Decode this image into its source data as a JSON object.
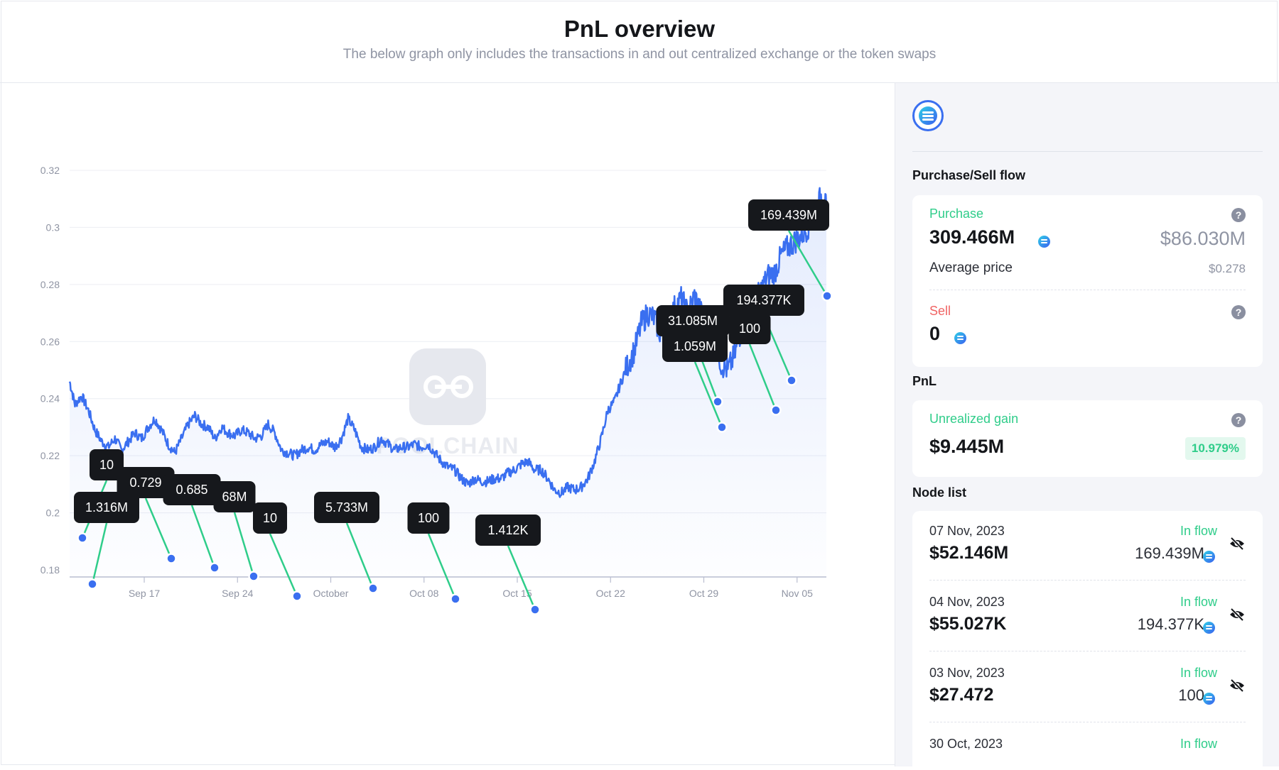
{
  "header": {
    "title": "PnL overview",
    "subtitle": "The below graph only includes the transactions in and out centralized exchange or the token swaps"
  },
  "watermark": "POOLCHAIN",
  "colors": {
    "line": "#3a6ff0",
    "accent_green": "#2fcd8a",
    "sell_red": "#f06464",
    "label_bg": "#16181c"
  },
  "chart_data": {
    "type": "line",
    "title": "",
    "xlabel": "",
    "ylabel": "",
    "ylim": [
      0.18,
      0.33
    ],
    "yticks": [
      "0.32",
      "0.3",
      "0.28",
      "0.26",
      "0.24",
      "0.22",
      "0.2",
      "0.18"
    ],
    "ytick_values": [
      0.32,
      0.3,
      0.28,
      0.26,
      0.24,
      0.22,
      0.2,
      0.18
    ],
    "xticks": [
      "Sep 17",
      "Sep 24",
      "October",
      "Oct 08",
      "Oct 15",
      "Oct 22",
      "Oct 29",
      "Nov 05"
    ],
    "xtick_days": [
      17,
      24,
      31,
      38,
      45,
      52,
      59,
      66
    ],
    "xlim_days": [
      11.4,
      68.2
    ],
    "series": [
      {
        "points": [
          [
            11.4,
            0.246
          ],
          [
            11.8,
            0.238
          ],
          [
            12.3,
            0.241
          ],
          [
            12.8,
            0.236
          ],
          [
            13.3,
            0.229
          ],
          [
            13.8,
            0.225
          ],
          [
            14.3,
            0.223
          ],
          [
            14.8,
            0.226
          ],
          [
            15.3,
            0.222
          ],
          [
            15.8,
            0.225
          ],
          [
            16.3,
            0.228
          ],
          [
            16.8,
            0.226
          ],
          [
            17.3,
            0.23
          ],
          [
            17.8,
            0.233
          ],
          [
            18.3,
            0.229
          ],
          [
            18.8,
            0.224
          ],
          [
            19.3,
            0.221
          ],
          [
            19.8,
            0.226
          ],
          [
            20.3,
            0.231
          ],
          [
            20.8,
            0.234
          ],
          [
            21.3,
            0.231
          ],
          [
            21.8,
            0.23
          ],
          [
            22.3,
            0.226
          ],
          [
            22.8,
            0.23
          ],
          [
            23.3,
            0.228
          ],
          [
            23.8,
            0.227
          ],
          [
            24.3,
            0.229
          ],
          [
            24.8,
            0.228
          ],
          [
            25.3,
            0.226
          ],
          [
            25.8,
            0.227
          ],
          [
            26.3,
            0.231
          ],
          [
            26.8,
            0.228
          ],
          [
            27.3,
            0.222
          ],
          [
            27.8,
            0.221
          ],
          [
            28.3,
            0.22
          ],
          [
            28.8,
            0.222
          ],
          [
            29.3,
            0.223
          ],
          [
            29.8,
            0.222
          ],
          [
            30.3,
            0.224
          ],
          [
            30.8,
            0.225
          ],
          [
            31.3,
            0.223
          ],
          [
            31.8,
            0.226
          ],
          [
            32.3,
            0.233
          ],
          [
            32.8,
            0.229
          ],
          [
            33.3,
            0.223
          ],
          [
            33.8,
            0.222
          ],
          [
            34.3,
            0.223
          ],
          [
            34.8,
            0.226
          ],
          [
            35.3,
            0.224
          ],
          [
            35.8,
            0.222
          ],
          [
            36.3,
            0.223
          ],
          [
            36.8,
            0.223
          ],
          [
            37.3,
            0.224
          ],
          [
            37.8,
            0.223
          ],
          [
            38.3,
            0.224
          ],
          [
            38.8,
            0.221
          ],
          [
            39.3,
            0.218
          ],
          [
            39.8,
            0.216
          ],
          [
            40.3,
            0.215
          ],
          [
            40.8,
            0.212
          ],
          [
            41.3,
            0.21
          ],
          [
            41.8,
            0.212
          ],
          [
            42.3,
            0.211
          ],
          [
            42.8,
            0.211
          ],
          [
            43.3,
            0.212
          ],
          [
            43.8,
            0.212
          ],
          [
            44.3,
            0.214
          ],
          [
            44.8,
            0.215
          ],
          [
            45.3,
            0.217
          ],
          [
            45.8,
            0.218
          ],
          [
            46.3,
            0.215
          ],
          [
            46.8,
            0.215
          ],
          [
            47.3,
            0.212
          ],
          [
            47.8,
            0.208
          ],
          [
            48.3,
            0.207
          ],
          [
            48.8,
            0.209
          ],
          [
            49.3,
            0.208
          ],
          [
            49.8,
            0.209
          ],
          [
            50.3,
            0.212
          ],
          [
            50.8,
            0.218
          ],
          [
            51.3,
            0.226
          ],
          [
            51.8,
            0.236
          ],
          [
            52.3,
            0.239
          ],
          [
            52.8,
            0.246
          ],
          [
            53.3,
            0.252
          ],
          [
            53.8,
            0.257
          ],
          [
            54.3,
            0.266
          ],
          [
            54.8,
            0.27
          ],
          [
            55.3,
            0.268
          ],
          [
            55.8,
            0.262
          ],
          [
            56.3,
            0.266
          ],
          [
            56.8,
            0.272
          ],
          [
            57.3,
            0.275
          ],
          [
            57.8,
            0.27
          ],
          [
            58.3,
            0.276
          ],
          [
            58.8,
            0.27
          ],
          [
            59.3,
            0.268
          ],
          [
            59.8,
            0.262
          ],
          [
            60.3,
            0.252
          ],
          [
            60.8,
            0.25
          ],
          [
            61.3,
            0.255
          ],
          [
            61.8,
            0.264
          ],
          [
            62.3,
            0.272
          ],
          [
            62.8,
            0.274
          ],
          [
            63.3,
            0.278
          ],
          [
            63.8,
            0.283
          ],
          [
            64.3,
            0.284
          ],
          [
            64.8,
            0.29
          ],
          [
            65.3,
            0.293
          ],
          [
            65.8,
            0.295
          ],
          [
            66.3,
            0.297
          ],
          [
            66.8,
            0.3
          ],
          [
            67.3,
            0.304
          ],
          [
            67.8,
            0.311
          ],
          [
            68.2,
            0.307
          ]
        ]
      }
    ],
    "markers": [
      {
        "label": "10",
        "day": 12.2,
        "value": 0.238
      },
      {
        "label": "1.316M",
        "day": 13.0,
        "value": 0.225
      },
      {
        "label": "0.729",
        "day": 13.0,
        "value": 0.225
      },
      {
        "label": "0.685",
        "day": 19.8,
        "value": 0.232
      },
      {
        "label": "68M",
        "day": 22.8,
        "value": 0.229
      },
      {
        "label": "10",
        "day": 26.1,
        "value": 0.227
      },
      {
        "label": "5.733M",
        "day": 27.8,
        "value": 0.221
      },
      {
        "label": "100",
        "day": 33.8,
        "value": 0.223
      },
      {
        "label": "1.412K",
        "day": 40.0,
        "value": 0.22
      },
      {
        "label": "31.085M",
        "day": 46.0,
        "value": 0.217
      },
      {
        "label": "1.059M",
        "day": 58.4,
        "value": 0.277
      },
      {
        "label": "100",
        "day": 58.7,
        "value": 0.27
      },
      {
        "label": "194.377K",
        "day": 62.8,
        "value": 0.275
      },
      {
        "label": "169.439M",
        "day": 64.0,
        "value": 0.283
      }
    ]
  },
  "sidebar": {
    "purchase_sell_title": "Purchase/Sell flow",
    "purchase": {
      "label": "Purchase",
      "help": "?",
      "amount": "309.466M",
      "usd": "$86.030M",
      "avg_label": "Average price",
      "avg_value": "$0.278"
    },
    "sell": {
      "label": "Sell",
      "help": "?",
      "amount": "0"
    },
    "pnl_title": "PnL",
    "pnl": {
      "label": "Unrealized gain",
      "help": "?",
      "value": "$9.445M",
      "pct": "10.979%"
    },
    "node_list_title": "Node list",
    "nodes": [
      {
        "date": "07 Nov, 2023",
        "flow": "In flow",
        "usd": "$52.146M",
        "amount": "169.439M"
      },
      {
        "date": "04 Nov, 2023",
        "flow": "In flow",
        "usd": "$55.027K",
        "amount": "194.377K"
      },
      {
        "date": "03 Nov, 2023",
        "flow": "In flow",
        "usd": "$27.472",
        "amount": "100"
      },
      {
        "date": "30 Oct, 2023",
        "flow": "In flow"
      }
    ]
  }
}
